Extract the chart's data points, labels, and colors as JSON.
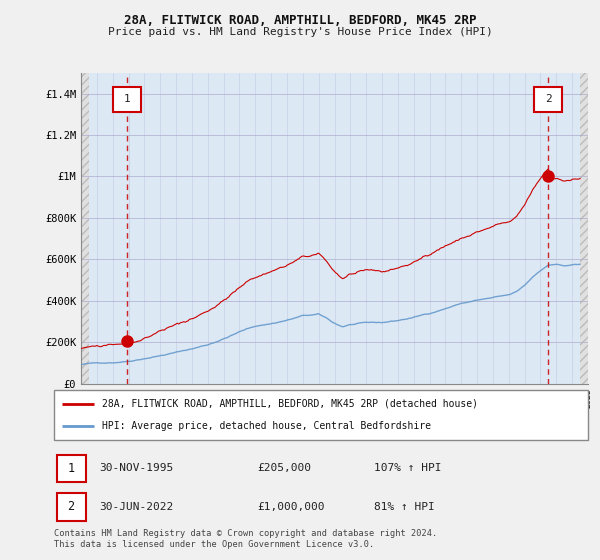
{
  "title": "28A, FLITWICK ROAD, AMPTHILL, BEDFORD, MK45 2RP",
  "subtitle": "Price paid vs. HM Land Registry's House Price Index (HPI)",
  "legend_line1": "28A, FLITWICK ROAD, AMPTHILL, BEDFORD, MK45 2RP (detached house)",
  "legend_line2": "HPI: Average price, detached house, Central Bedfordshire",
  "table_row1_num": "1",
  "table_row1_date": "30-NOV-1995",
  "table_row1_price": "£205,000",
  "table_row1_hpi": "107% ↑ HPI",
  "table_row2_num": "2",
  "table_row2_date": "30-JUN-2022",
  "table_row2_price": "£1,000,000",
  "table_row2_hpi": "81% ↑ HPI",
  "footer": "Contains HM Land Registry data © Crown copyright and database right 2024.\nThis data is licensed under the Open Government Licence v3.0.",
  "ylim": [
    0,
    1500000
  ],
  "yticks": [
    0,
    200000,
    400000,
    600000,
    800000,
    1000000,
    1200000,
    1400000
  ],
  "ytick_labels": [
    "£0",
    "£200K",
    "£400K",
    "£600K",
    "£800K",
    "£1M",
    "£1.2M",
    "£1.4M"
  ],
  "red_color": "#cc0000",
  "blue_color": "#6699cc",
  "plot_bg_color": "#dce9f5",
  "hatch_color": "#c0c0c0",
  "grid_color": "#aaaacc",
  "marker1_x": 1995.917,
  "marker1_y": 205000,
  "marker2_x": 2022.5,
  "marker2_y": 1000000,
  "vline1_x": 1995.917,
  "vline2_x": 2022.5,
  "xmin": 1993.0,
  "xmax": 2025.0
}
